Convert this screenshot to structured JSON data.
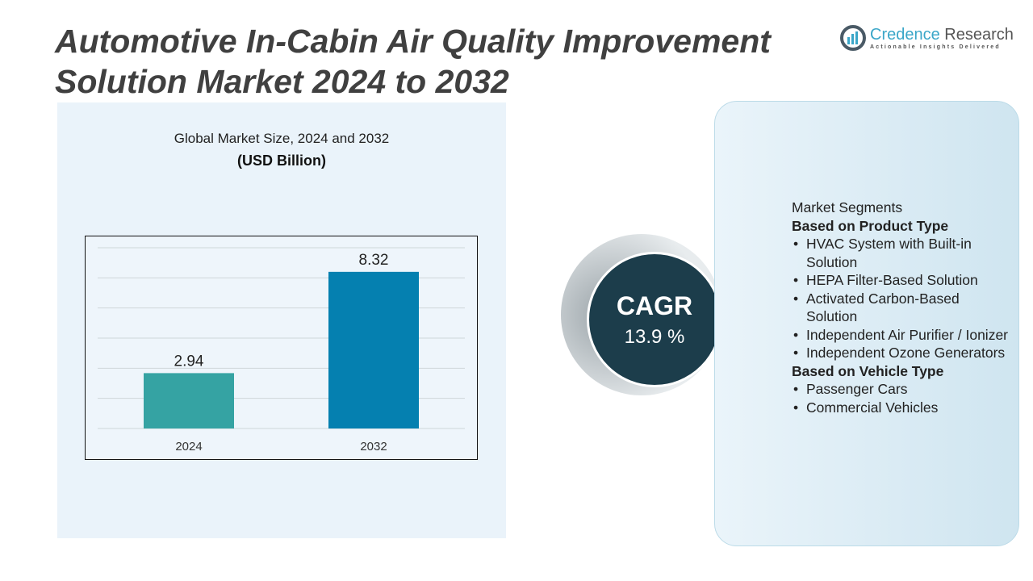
{
  "title": "Automotive In-Cabin Air Quality Improvement Solution Market 2024 to 2032",
  "logo": {
    "name_a": "Credence",
    "name_b": "Research",
    "tagline": "Actionable Insights Delivered"
  },
  "chart_data": {
    "type": "bar",
    "title": "Global Market Size, 2024 and 2032",
    "subtitle": "(USD Billion)",
    "categories": [
      "2024",
      "2032"
    ],
    "values": [
      2.94,
      8.32
    ],
    "value_labels": [
      "2.94",
      "8.32"
    ],
    "colors": [
      "#35a3a3",
      "#0580b0"
    ],
    "ylim": [
      0,
      9.6
    ],
    "grid": true,
    "xlabel": "",
    "ylabel": ""
  },
  "cagr": {
    "label": "CAGR",
    "value": "13.9 %"
  },
  "segments": {
    "heading": "Market Segments",
    "groups": [
      {
        "title": "Based on Product Type",
        "items": [
          "HVAC System with Built-in Solution",
          "HEPA Filter-Based Solution",
          "Activated Carbon-Based Solution",
          "Independent Air Purifier / Ionizer",
          "Independent Ozone Generators"
        ]
      },
      {
        "title": "Based on Vehicle Type",
        "items": [
          "Passenger Cars",
          "Commercial Vehicles"
        ]
      }
    ]
  }
}
